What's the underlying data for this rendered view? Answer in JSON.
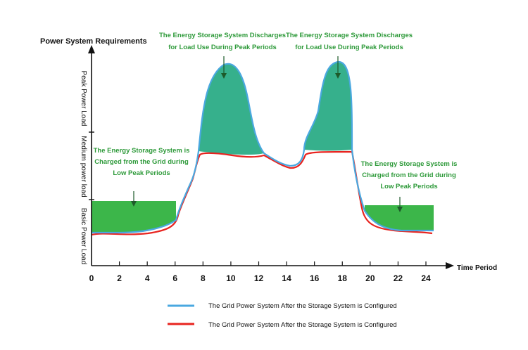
{
  "chart_data": {
    "type": "area",
    "title": "Power System Requirements",
    "xlabel": "Time Period",
    "x_ticks": [
      "0",
      "2",
      "4",
      "6",
      "8",
      "10",
      "12",
      "14",
      "16",
      "18",
      "20",
      "22",
      "24"
    ],
    "xlim": [
      0,
      24
    ],
    "y_bands": [
      "Basic Power Load",
      "Medium power load",
      "Peak Power Load"
    ],
    "annotations": {
      "charge_left": [
        "The Energy Storage System is",
        "Charged from the Grid during",
        "Low Peak Periods"
      ],
      "charge_right": [
        "The Energy Storage System is",
        "Charged from the Grid during",
        "Low Peak Periods"
      ],
      "discharge_1": [
        "The Energy Storage System Discharges",
        "for Load Use During Peak Periods"
      ],
      "discharge_2": [
        "The Energy Storage System Discharges",
        "for Load Use During Peak Periods"
      ]
    },
    "legend": [
      {
        "label": "The Grid Power System After the Storage System is Configured",
        "color": "#4aa8e0"
      },
      {
        "label": "The Grid Power System After the Storage System is Configured",
        "color": "#e8231f"
      }
    ],
    "colors": {
      "charge_fill": "#3cb64a",
      "discharge_fill": "#36b08c",
      "blue_line": "#4aa8e0",
      "red_line": "#e8231f",
      "annotation_text": "#2e9a3a"
    }
  }
}
